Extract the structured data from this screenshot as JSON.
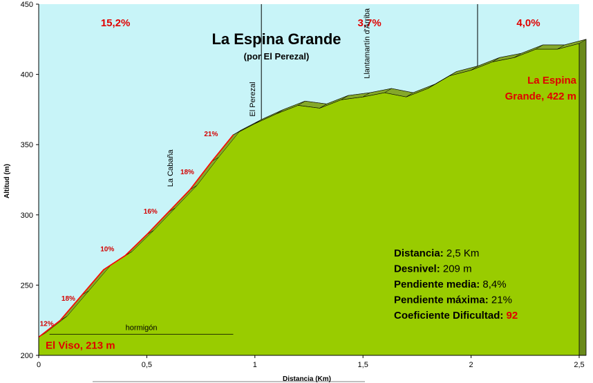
{
  "chart_data": {
    "type": "area",
    "title": "La Espina Grande",
    "subtitle": "(por El Perezal)",
    "xlabel": "Distancia (Km)",
    "ylabel": "Altitud (m)",
    "xlim": [
      0,
      2.5
    ],
    "ylim": [
      200,
      450
    ],
    "x_ticks": [
      0,
      0.5,
      1,
      1.5,
      2,
      2.5
    ],
    "x_tick_labels": [
      "0",
      "0,5",
      "1",
      "1,5",
      "2",
      "2,5"
    ],
    "y_ticks": [
      200,
      250,
      300,
      350,
      400,
      450
    ],
    "y_tick_labels": [
      "200",
      "250",
      "300",
      "350",
      "400",
      "450"
    ],
    "profile": {
      "x": [
        0,
        0.1,
        0.2,
        0.3,
        0.4,
        0.5,
        0.6,
        0.7,
        0.8,
        0.9,
        1.0,
        1.1,
        1.2,
        1.3,
        1.4,
        1.5,
        1.6,
        1.7,
        1.8,
        1.9,
        2.0,
        2.1,
        2.2,
        2.3,
        2.4,
        2.5
      ],
      "y": [
        213,
        225,
        243,
        261,
        271,
        286,
        302,
        318,
        338,
        357,
        365,
        372,
        378,
        376,
        382,
        384,
        387,
        384,
        390,
        399,
        403,
        409,
        412,
        418,
        418,
        422
      ]
    },
    "sections": [
      {
        "x_start": 0,
        "x_end": 1.03,
        "grade": "15,2%"
      },
      {
        "x_start": 1.03,
        "x_end": 2.03,
        "grade": "3,7%"
      },
      {
        "x_start": 2.03,
        "x_end": 2.5,
        "grade": "4,0%"
      }
    ],
    "section_dividers": [
      1.03,
      2.03
    ],
    "segment_grades": [
      {
        "x": 0.05,
        "y": 218,
        "label": "12%"
      },
      {
        "x": 0.15,
        "y": 236,
        "label": "18%"
      },
      {
        "x": 0.33,
        "y": 271,
        "label": "10%"
      },
      {
        "x": 0.53,
        "y": 298,
        "label": "16%"
      },
      {
        "x": 0.7,
        "y": 326,
        "label": "18%"
      },
      {
        "x": 0.81,
        "y": 353,
        "label": "21%"
      }
    ],
    "places": [
      {
        "x": 0.62,
        "y": 318,
        "label": "La Cabaña"
      },
      {
        "x": 1.0,
        "y": 368,
        "label": "El Perezal"
      },
      {
        "x": 1.53,
        "y": 395,
        "label": "Llantamartín d'Arriba"
      }
    ],
    "surface": {
      "x_start": 0.05,
      "x_end": 0.9,
      "y": 216,
      "label": "hormigón"
    },
    "start_label": "El Viso, 213 m",
    "end_label_lines": [
      "La Espina",
      "Grande, 422 m"
    ],
    "stats": [
      {
        "label": "Distancia:",
        "value": "2,5 Km"
      },
      {
        "label": "Desnivel:",
        "value": "209 m"
      },
      {
        "label": "Pendiente media:",
        "value": "8,4%"
      },
      {
        "label": "Pendiente máxima:",
        "value": "21%"
      },
      {
        "label": "Coeficiente Dificultad:",
        "value": "92"
      }
    ],
    "colors": {
      "sky": "#c8f4f8",
      "ground": "#99cc00",
      "ground_side": "#6a8a1a",
      "climb_line": "#ff0000",
      "highlight": "#e00000"
    }
  }
}
